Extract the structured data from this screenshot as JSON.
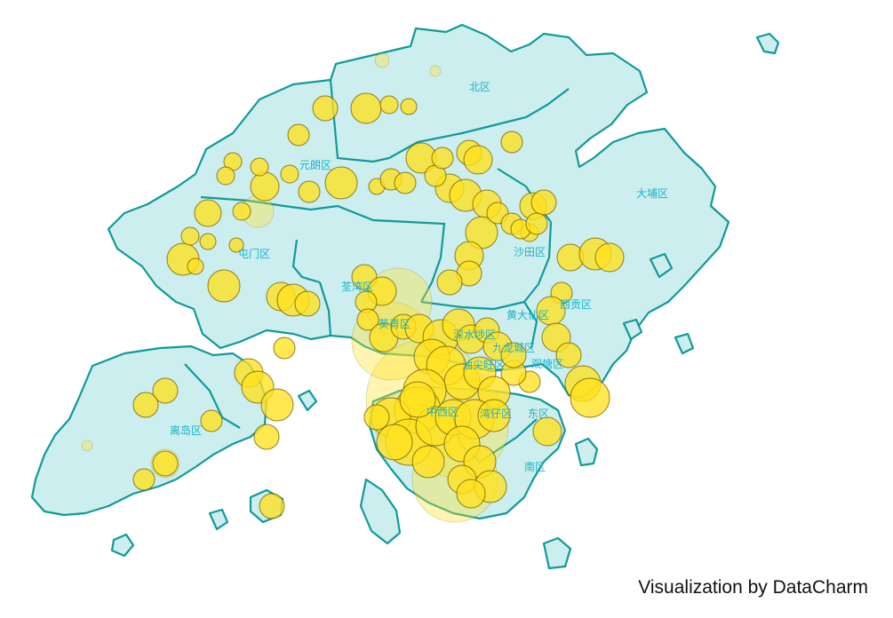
{
  "map": {
    "credit": "Visualization by DataCharm",
    "colors": {
      "land_fill": "#cdeeee",
      "border": "#119a99",
      "bubble_fill": "#ffe11f",
      "bubble_stroke": "#6b5a00",
      "label": "#1bb3c9"
    },
    "districts": [
      {
        "id": "north",
        "name": "北区"
      },
      {
        "id": "yuen-long",
        "name": "元朗区"
      },
      {
        "id": "tai-po",
        "name": "大埔区"
      },
      {
        "id": "tuen-mun",
        "name": "屯门区"
      },
      {
        "id": "sha-tin",
        "name": "沙田区"
      },
      {
        "id": "tsuen-wan",
        "name": "荃湾区"
      },
      {
        "id": "sai-kung",
        "name": "西贡区"
      },
      {
        "id": "wong-tai-sin",
        "name": "黄大仙区"
      },
      {
        "id": "kwai-tsing",
        "name": "葵青区"
      },
      {
        "id": "sham-shui-po",
        "name": "深水埗区"
      },
      {
        "id": "kowloon-city",
        "name": "九龙城区"
      },
      {
        "id": "yau-tsim-mong",
        "name": "油尖旺区"
      },
      {
        "id": "kwun-tong",
        "name": "观塘区"
      },
      {
        "id": "islands",
        "name": "离岛区"
      },
      {
        "id": "central-western",
        "name": "中西区"
      },
      {
        "id": "wan-chai",
        "name": "湾仔区"
      },
      {
        "id": "eastern",
        "name": "东区"
      },
      {
        "id": "southern",
        "name": "南区"
      }
    ]
  }
}
